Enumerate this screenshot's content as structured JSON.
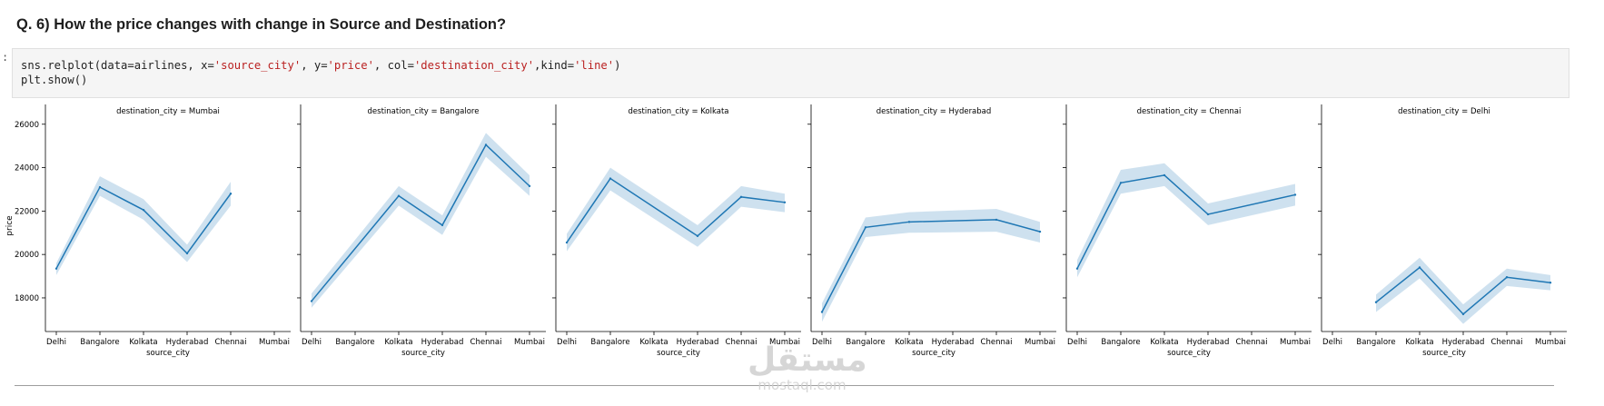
{
  "heading": "Q. 6) How the price changes with change in Source and Destination?",
  "prompt_marker": ":",
  "code": {
    "line1_parts": [
      "sns.relplot(data=airlines, x=",
      "'source_city'",
      ", y=",
      "'price'",
      ", col=",
      "'destination_city'",
      ",kind=",
      "'line'",
      ")"
    ],
    "line2": "plt.show()"
  },
  "watermark": {
    "arabic": "مستقل",
    "latin": "mostaql.com"
  },
  "colors": {
    "line": "#1f77b4",
    "band": "#1f77b4",
    "axis": "#000000",
    "code_string": "#ba2121",
    "code_bg": "#f5f5f5"
  },
  "chart_data": {
    "type": "line",
    "facet_title_prefix": "destination_city = ",
    "xlabel": "source_city",
    "ylabel": "price",
    "categories": [
      "Delhi",
      "Bangalore",
      "Kolkata",
      "Hyderabad",
      "Chennai",
      "Mumbai"
    ],
    "yticks": [
      18000,
      20000,
      22000,
      24000,
      26000
    ],
    "ylim": [
      16450,
      26200
    ],
    "grid": false,
    "panels": [
      {
        "destination": "Mumbai",
        "values": [
          19350,
          23100,
          22050,
          20050,
          22800,
          null
        ],
        "lower": [
          19050,
          22700,
          21600,
          19650,
          22250,
          null
        ],
        "upper": [
          19600,
          23600,
          22550,
          20450,
          23350,
          null
        ]
      },
      {
        "destination": "Bangalore",
        "values": [
          17850,
          null,
          22700,
          21350,
          25050,
          23150
        ],
        "lower": [
          17550,
          null,
          22250,
          20900,
          24500,
          22700
        ],
        "upper": [
          18200,
          null,
          23150,
          21800,
          25600,
          23650
        ]
      },
      {
        "destination": "Kolkata",
        "values": [
          20550,
          23500,
          null,
          20850,
          22650,
          22400
        ],
        "lower": [
          20150,
          22950,
          null,
          20350,
          22200,
          21950
        ],
        "upper": [
          20950,
          24000,
          null,
          21350,
          23150,
          22800
        ]
      },
      {
        "destination": "Hyderabad",
        "values": [
          17350,
          21250,
          21500,
          null,
          21600,
          21050
        ],
        "lower": [
          16900,
          20800,
          21000,
          null,
          21050,
          20550
        ],
        "upper": [
          17750,
          21700,
          21950,
          null,
          22100,
          21500
        ]
      },
      {
        "destination": "Chennai",
        "values": [
          19350,
          23300,
          23650,
          21850,
          null,
          22750
        ],
        "lower": [
          18950,
          22800,
          23150,
          21350,
          null,
          22250
        ],
        "upper": [
          19750,
          23900,
          24200,
          22350,
          null,
          23250
        ]
      },
      {
        "destination": "Delhi",
        "values": [
          null,
          17800,
          19400,
          17250,
          18950,
          18700
        ],
        "lower": [
          null,
          17350,
          18900,
          16800,
          18550,
          18350
        ],
        "upper": [
          null,
          18150,
          19850,
          17700,
          19350,
          19050
        ]
      }
    ]
  }
}
